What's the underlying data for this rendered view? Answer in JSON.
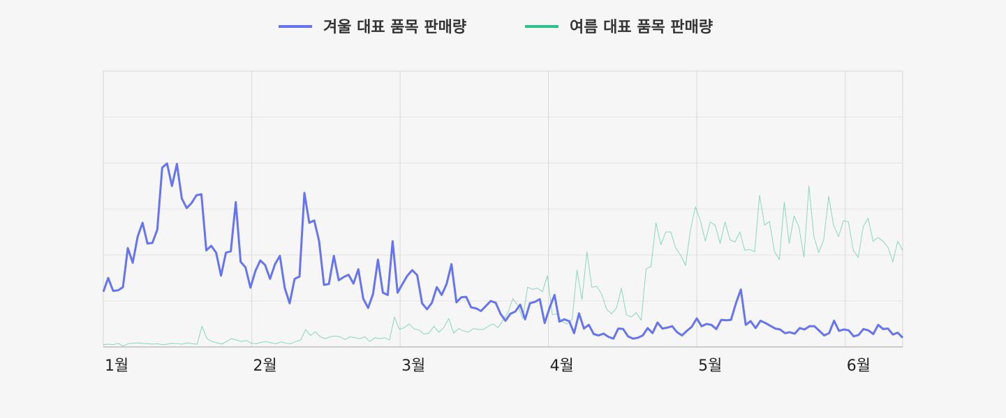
{
  "chart_data": {
    "type": "line",
    "title": "",
    "xlabel": "",
    "ylabel": "",
    "x_ticks": [
      "1월",
      "2월",
      "3월",
      "4월",
      "5월",
      "6월"
    ],
    "x_tick_days": [
      1,
      32,
      63,
      94,
      125,
      156
    ],
    "x_range_days": [
      1,
      168
    ],
    "ylim": [
      0,
      6
    ],
    "grid": true,
    "legend_position": "top-center",
    "series": [
      {
        "name": "겨울 대표 품목 판매량",
        "color": "#6674f2",
        "values": [
          1.2,
          1.5,
          1.22,
          1.23,
          1.3,
          2.15,
          1.83,
          2.4,
          2.7,
          2.25,
          2.26,
          2.55,
          3.9,
          3.99,
          3.5,
          3.98,
          3.23,
          3.02,
          3.13,
          3.3,
          3.32,
          2.1,
          2.2,
          2.05,
          1.55,
          2.05,
          2.08,
          3.15,
          1.85,
          1.73,
          1.29,
          1.65,
          1.88,
          1.78,
          1.48,
          1.8,
          1.98,
          1.28,
          0.95,
          1.48,
          1.53,
          3.35,
          2.7,
          2.75,
          2.3,
          1.35,
          1.37,
          1.98,
          1.45,
          1.52,
          1.57,
          1.38,
          1.69,
          1.05,
          0.85,
          1.15,
          1.9,
          1.18,
          1.13,
          2.3,
          1.18,
          1.37,
          1.55,
          1.67,
          1.56,
          0.95,
          0.82,
          0.96,
          1.3,
          1.13,
          1.37,
          1.8,
          0.97,
          1.08,
          1.09,
          0.86,
          0.84,
          0.78,
          0.89,
          1.0,
          0.96,
          0.72,
          0.57,
          0.72,
          0.77,
          0.92,
          0.6,
          0.95,
          0.98,
          1.04,
          0.52,
          0.85,
          1.13,
          0.55,
          0.6,
          0.56,
          0.3,
          0.73,
          0.4,
          0.48,
          0.28,
          0.25,
          0.29,
          0.22,
          0.18,
          0.4,
          0.39,
          0.23,
          0.18,
          0.2,
          0.25,
          0.41,
          0.3,
          0.53,
          0.4,
          0.42,
          0.45,
          0.32,
          0.25,
          0.35,
          0.44,
          0.62,
          0.45,
          0.5,
          0.48,
          0.39,
          0.59,
          0.58,
          0.59,
          0.95,
          1.25,
          0.48,
          0.56,
          0.41,
          0.57,
          0.52,
          0.46,
          0.4,
          0.38,
          0.3,
          0.32,
          0.29,
          0.41,
          0.38,
          0.45,
          0.45,
          0.35,
          0.25,
          0.3,
          0.57,
          0.35,
          0.38,
          0.36,
          0.23,
          0.26,
          0.39,
          0.36,
          0.28,
          0.48,
          0.39,
          0.4,
          0.27,
          0.31,
          0.2
        ]
      },
      {
        "name": "여름 대표 품목 판매량",
        "color": "#2ebf8b",
        "values": [
          0.05,
          0.06,
          0.05,
          0.08,
          0.02,
          0.07,
          0.08,
          0.09,
          0.08,
          0.07,
          0.06,
          0.07,
          0.05,
          0.06,
          0.08,
          0.07,
          0.06,
          0.09,
          0.07,
          0.06,
          0.45,
          0.18,
          0.12,
          0.09,
          0.06,
          0.12,
          0.18,
          0.15,
          0.12,
          0.14,
          0.08,
          0.07,
          0.1,
          0.12,
          0.09,
          0.07,
          0.11,
          0.08,
          0.07,
          0.12,
          0.15,
          0.38,
          0.25,
          0.33,
          0.22,
          0.18,
          0.22,
          0.24,
          0.22,
          0.16,
          0.22,
          0.2,
          0.18,
          0.22,
          0.12,
          0.2,
          0.18,
          0.2,
          0.15,
          0.65,
          0.38,
          0.42,
          0.5,
          0.39,
          0.37,
          0.28,
          0.3,
          0.45,
          0.32,
          0.42,
          0.62,
          0.3,
          0.4,
          0.35,
          0.32,
          0.4,
          0.38,
          0.38,
          0.45,
          0.5,
          0.42,
          0.58,
          0.75,
          1.05,
          0.9,
          0.62,
          1.3,
          1.25,
          1.28,
          1.2,
          1.55,
          0.7,
          0.72,
          0.55,
          0.5,
          0.6,
          1.67,
          1.03,
          2.07,
          1.3,
          1.32,
          1.15,
          0.82,
          0.72,
          0.85,
          1.28,
          0.7,
          0.65,
          0.75,
          0.58,
          1.7,
          1.75,
          2.7,
          2.22,
          2.5,
          2.5,
          2.15,
          2.0,
          1.77,
          2.55,
          3.05,
          2.75,
          2.3,
          2.72,
          2.65,
          2.25,
          2.72,
          2.33,
          2.28,
          2.5,
          2.1,
          2.12,
          2.07,
          3.3,
          2.65,
          2.73,
          2.08,
          1.9,
          3.15,
          2.25,
          2.85,
          2.6,
          1.95,
          3.5,
          2.4,
          2.05,
          2.33,
          3.28,
          2.65,
          2.4,
          2.75,
          2.72,
          2.1,
          1.95,
          2.62,
          2.8,
          2.3,
          2.38,
          2.3,
          2.17,
          1.85,
          2.3,
          2.1
        ]
      }
    ]
  }
}
